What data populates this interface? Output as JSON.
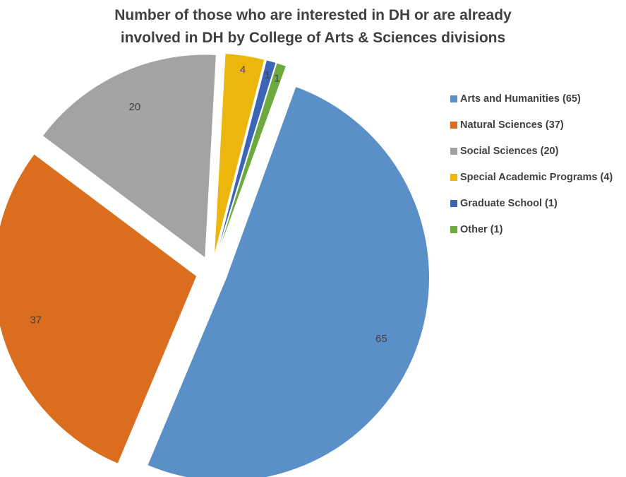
{
  "chart_data": {
    "type": "pie",
    "title_lines": [
      "Number of those who are interested in DH or are already",
      "involved in DH by College of Arts & Sciences divisions"
    ],
    "legend_position": "right",
    "slices": [
      {
        "name": "Arts and Humanities",
        "legend": "Arts and Humanities (65)",
        "value": 65,
        "label": "65",
        "color": "#5B8FC7"
      },
      {
        "name": "Natural Sciences",
        "legend": "Natural Sciences (37)",
        "value": 37,
        "label": "37",
        "color": "#DB6D1F"
      },
      {
        "name": "Social Sciences",
        "legend": "Social Sciences (20)",
        "value": 20,
        "label": "20",
        "color": "#A5A3A2"
      },
      {
        "name": "Special Academic Programs",
        "legend": "Special Academic Programs (4)",
        "value": 4,
        "label": "4",
        "color": "#EDB60C"
      },
      {
        "name": "Graduate School",
        "legend": "Graduate School (1)",
        "value": 1,
        "label": "1",
        "color": "#3D65B5"
      },
      {
        "name": "Other",
        "legend": "Other (1)",
        "value": 1,
        "label": "1",
        "color": "#6CA93E"
      }
    ]
  }
}
